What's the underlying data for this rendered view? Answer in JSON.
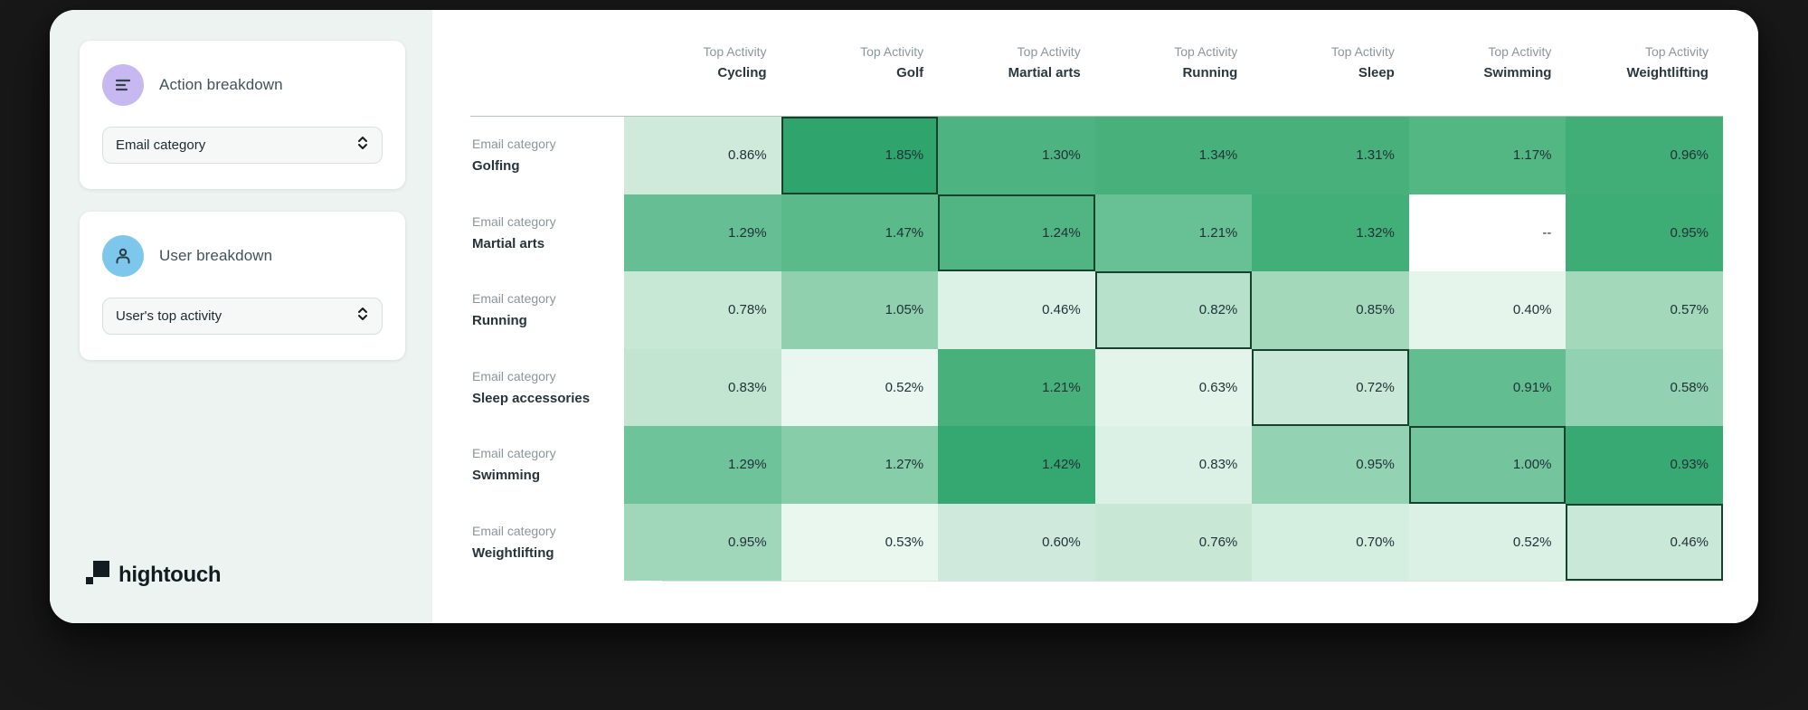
{
  "sidebar": {
    "panels": [
      {
        "title": "Action breakdown",
        "dropdown_value": "Email category",
        "icon": "bars-icon",
        "icon_bg": "#c8b8f2"
      },
      {
        "title": "User breakdown",
        "dropdown_value": "User's top activity",
        "icon": "user-icon",
        "icon_bg": "#7ec7ec"
      }
    ],
    "logo_text": "hightouch"
  },
  "chart_data": {
    "type": "heatmap",
    "column_header_prefix": "Top Activity",
    "row_header_prefix": "Email category",
    "columns": [
      "Cycling",
      "Golf",
      "Martial arts",
      "Running",
      "Sleep",
      "Swimming",
      "Weightlifting"
    ],
    "rows": [
      "Golfing",
      "Martial arts",
      "Running",
      "Sleep accessories",
      "Swimming",
      "Weightlifting"
    ],
    "values_unit": "%",
    "values": [
      [
        0.86,
        1.85,
        1.3,
        1.34,
        1.31,
        1.17,
        0.96
      ],
      [
        1.29,
        1.47,
        1.24,
        1.21,
        1.32,
        null,
        0.95
      ],
      [
        0.78,
        1.05,
        0.46,
        0.82,
        0.85,
        0.4,
        0.57
      ],
      [
        0.83,
        0.52,
        1.21,
        0.63,
        0.72,
        0.91,
        0.58
      ],
      [
        1.29,
        1.27,
        1.42,
        0.83,
        0.95,
        1.0,
        0.93
      ],
      [
        0.95,
        0.53,
        0.6,
        0.76,
        0.7,
        0.52,
        0.46
      ]
    ],
    "cell_labels": [
      [
        "0.86%",
        "1.85%",
        "1.30%",
        "1.34%",
        "1.31%",
        "1.17%",
        "0.96%"
      ],
      [
        "1.29%",
        "1.47%",
        "1.24%",
        "1.21%",
        "1.32%",
        "--",
        "0.95%"
      ],
      [
        "0.78%",
        "1.05%",
        "0.46%",
        "0.82%",
        "0.85%",
        "0.40%",
        "0.57%"
      ],
      [
        "0.83%",
        "0.52%",
        "1.21%",
        "0.63%",
        "0.72%",
        "0.91%",
        "0.58%"
      ],
      [
        "1.29%",
        "1.27%",
        "1.42%",
        "0.83%",
        "0.95%",
        "1.00%",
        "0.93%"
      ],
      [
        "0.95%",
        "0.53%",
        "0.60%",
        "0.76%",
        "0.70%",
        "0.52%",
        "0.46%"
      ]
    ],
    "cell_colors": [
      [
        "#cfeadb",
        "#2fa46d",
        "#4db380",
        "#48b17b",
        "#48b17b",
        "#53b783",
        "#41ae77"
      ],
      [
        "#66bf94",
        "#5aba89",
        "#50b582",
        "#68c095",
        "#42ae78",
        "#ffffff",
        "#3eac75"
      ],
      [
        "#c8e8d6",
        "#90d0ae",
        "#ddf2e7",
        "#b7e1ca",
        "#a4d8bb",
        "#e5f5ec",
        "#a3d8ba"
      ],
      [
        "#c2e5d1",
        "#eaf7f0",
        "#48b17b",
        "#e3f4eb",
        "#c9e8d7",
        "#62bd90",
        "#92d1b1"
      ],
      [
        "#6fc39b",
        "#87cda9",
        "#35a871",
        "#dcf1e6",
        "#93d2b2",
        "#74c59d",
        "#39a973"
      ],
      [
        "#a0d6b9",
        "#e9f7ef",
        "#cfeadd",
        "#c8e8d5",
        "#d4eee0",
        "#dbf1e6",
        "#c9e8d7"
      ]
    ],
    "highlighted_cells": [
      [
        0,
        1
      ],
      [
        1,
        2
      ],
      [
        2,
        3
      ],
      [
        3,
        4
      ],
      [
        4,
        5
      ],
      [
        5,
        6
      ]
    ],
    "missing_label": "--",
    "highlight_border_color": "#17402d",
    "scale_min_color": "#ecf8f1",
    "scale_max_color": "#2fa46d",
    "legend_position": "none",
    "grid": false
  }
}
